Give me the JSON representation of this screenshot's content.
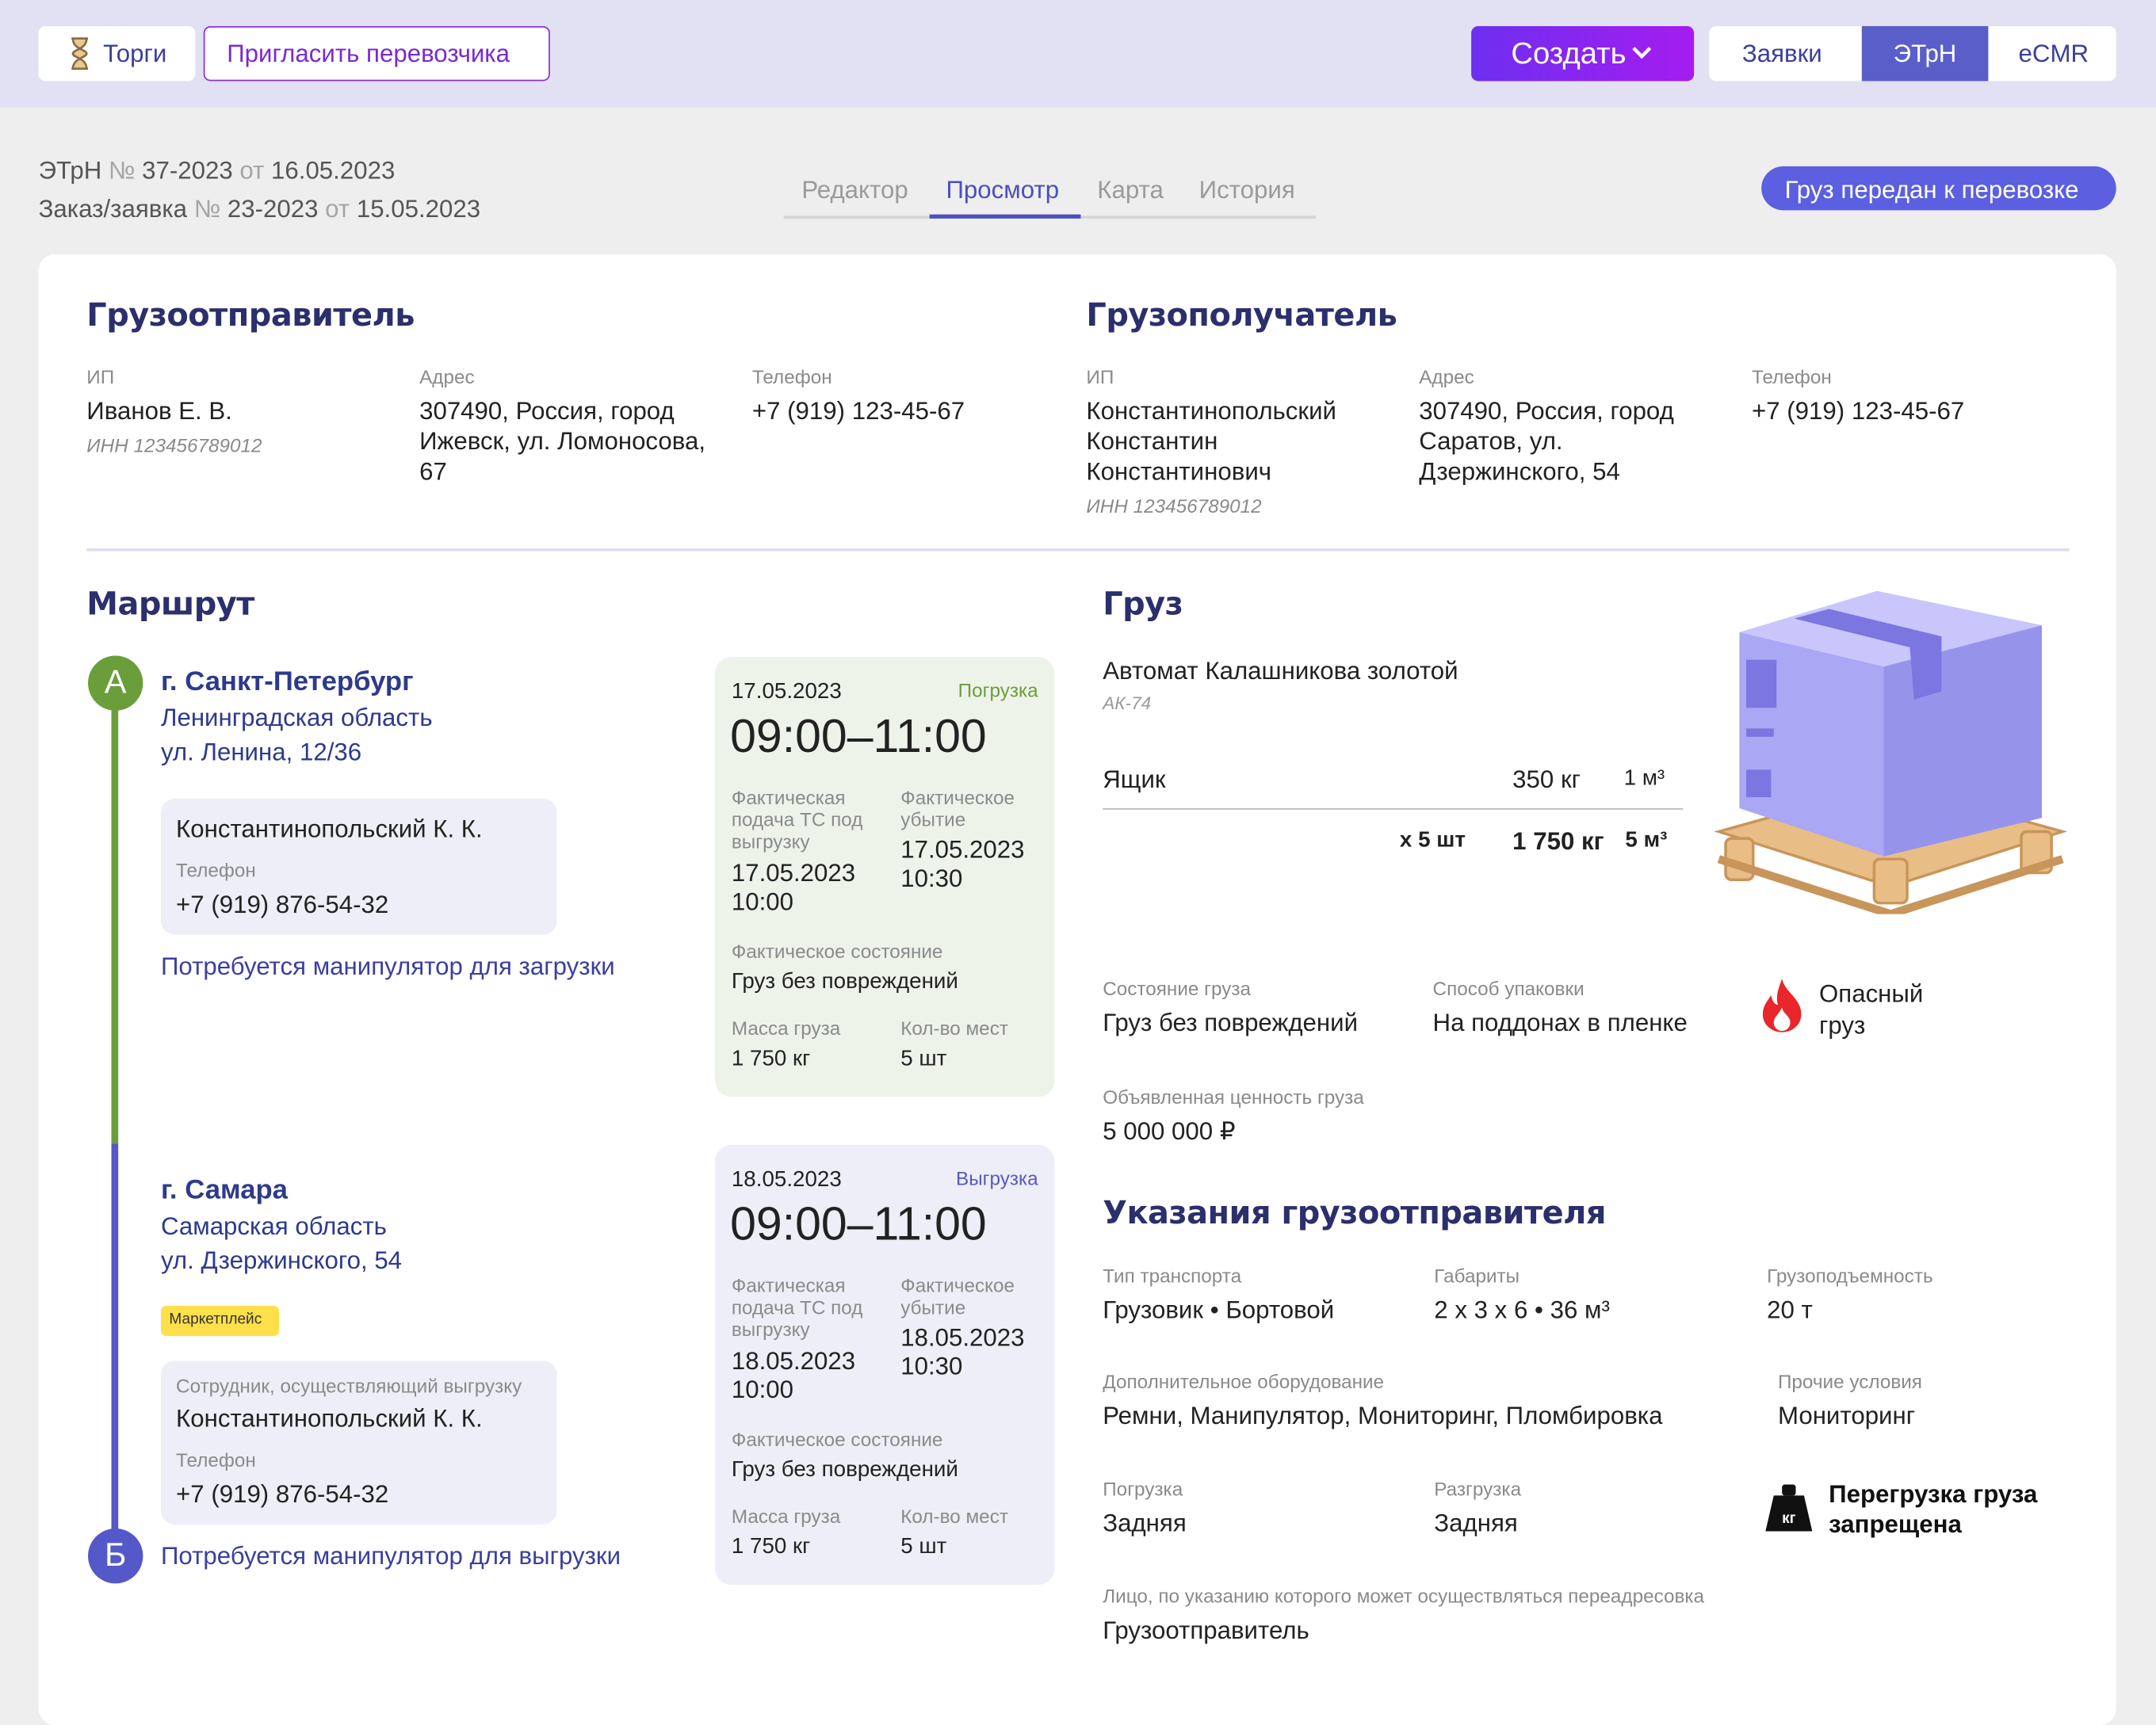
{
  "header": {
    "tenders": "Торги",
    "invite": "Пригласить перевозчика",
    "create": "Создать",
    "tabs": [
      "Заявки",
      "ЭТрН",
      "eCMR"
    ]
  },
  "doc": {
    "etrn": {
      "label": "ЭТрН",
      "num_prefix": "№",
      "number": "37-2023",
      "date_prefix": "от",
      "date": "16.05.2023"
    },
    "order": {
      "label": "Заказ/заявка",
      "num_prefix": "№",
      "number": "23-2023",
      "date_prefix": "от",
      "date": "15.05.2023"
    }
  },
  "view_tabs": [
    "Редактор",
    "Просмотр",
    "Карта",
    "История"
  ],
  "status": "Груз передан к перевозке",
  "shipper": {
    "title": "Грузоотправитель",
    "fields": [
      {
        "label": "ИП",
        "value": "Иванов Е. В.",
        "note": "ИНН 123456789012"
      },
      {
        "label": "Адрес",
        "value": "307490, Россия, город Ижевск, ул. Ломоносова, 67"
      },
      {
        "label": "Телефон",
        "value": "+7 (919) 123-45-67"
      }
    ]
  },
  "consignee": {
    "title": "Грузополучатель",
    "fields": [
      {
        "label": "ИП",
        "value": "Константинопольский Константин Константинович",
        "note": "ИНН 123456789012"
      },
      {
        "label": "Адрес",
        "value": "307490, Россия, город Саратов, ул. Дзержинского, 54"
      },
      {
        "label": "Телефон",
        "value": "+7 (919) 123-45-67"
      }
    ]
  },
  "route": {
    "title": "Маршрут",
    "points": [
      {
        "marker": "А",
        "city": "г. Санкт-Петербург",
        "region": "Ленинградская область",
        "street": "ул. Ленина, 12/36",
        "contact": {
          "name": "Константинопольский К. К.",
          "phone_label": "Телефон",
          "phone": "+7 (919) 876-54-32"
        },
        "note": "Потребуется манипулятор для загрузки",
        "slot": {
          "date": "17.05.2023",
          "kind": "Погрузка",
          "time": "09:00–11:00",
          "arrival_label": "Фактическая подача ТС под выгрузку",
          "arrival": "17.05.2023 10:00",
          "departure_label": "Фактическое убытие",
          "departure": "17.05.2023 10:30",
          "condition_label": "Фактическое состояние",
          "condition": "Груз без повреждений",
          "mass_label": "Масса груза",
          "mass": "1 750 кг",
          "places_label": "Кол-во мест",
          "places": "5 шт"
        }
      },
      {
        "marker": "Б",
        "city": "г. Самара",
        "region": "Самарская область",
        "street": "ул. Дзержинского, 54",
        "tag": "Маркетплейс",
        "contact": {
          "role": "Сотрудник, осуществляющий выгрузку",
          "name": "Константинопольский К. К.",
          "phone_label": "Телефон",
          "phone": "+7 (919) 876-54-32"
        },
        "note": "Потребуется манипулятор для выгрузки",
        "slot": {
          "date": "18.05.2023",
          "kind": "Выгрузка",
          "time": "09:00–11:00",
          "arrival_label": "Фактическая подача ТС под выгрузку",
          "arrival": "18.05.2023 10:00",
          "departure_label": "Фактическое убытие",
          "departure": "18.05.2023 10:30",
          "condition_label": "Фактическое состояние",
          "condition": "Груз без повреждений",
          "mass_label": "Масса груза",
          "mass": "1 750 кг",
          "places_label": "Кол-во мест",
          "places": "5 шт"
        }
      }
    ]
  },
  "cargo": {
    "title": "Груз",
    "name": "Автомат Калашникова золотой",
    "code": "АК-74",
    "package": "Ящик",
    "unit_mass": "350 кг",
    "unit_volume": "1 м³",
    "count": "х 5 шт",
    "total_mass": "1 750 кг",
    "total_volume": "5 м³",
    "state_label": "Состояние груза",
    "state": "Груз без повреждений",
    "packing_label": "Способ упаковки",
    "packing": "На поддонах в пленке",
    "hazard": "Опасный груз",
    "value_label": "Объявленная ценность груза",
    "value": "5 000 000 ₽"
  },
  "instructions": {
    "title": "Указания грузоотправителя",
    "fields": [
      {
        "label": "Тип транспорта",
        "value": "Грузовик • Бортовой"
      },
      {
        "label": "Габариты",
        "value": "2 х 3 х 6 • 36 м³"
      },
      {
        "label": "Грузоподъемность",
        "value": "20 т"
      },
      {
        "label": "Дополнительное оборудование",
        "value": "Ремни, Манипулятор, Мониторинг, Пломбировка"
      },
      {
        "label": "Прочие условия",
        "value": "Мониторинг"
      },
      {
        "label": "Погрузка",
        "value": "Задняя"
      },
      {
        "label": "Разгрузка",
        "value": "Задняя"
      },
      {
        "label": "Лицо, по указанию которого может осуществляться переадресовка",
        "value": "Грузоотправитель"
      }
    ],
    "overload": "Перегрузка груза запрещена"
  }
}
